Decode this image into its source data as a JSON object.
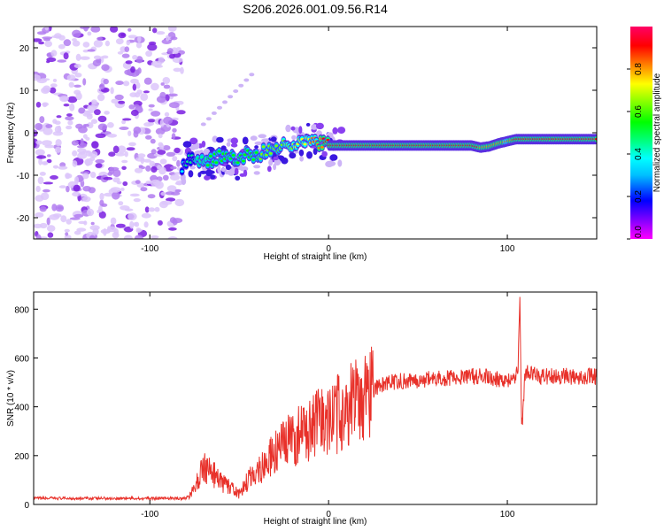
{
  "chart_data": [
    {
      "type": "heatmap",
      "title": "S206.2026.001.09.56.R14",
      "xlabel": "Height of straight line (km)",
      "ylabel": "Frequency (Hz)",
      "xlim": [
        -165,
        150
      ],
      "ylim": [
        -25,
        25
      ],
      "xticks": [
        -100,
        0,
        100
      ],
      "xtick_labels": [
        "-100",
        "0",
        "100"
      ],
      "yticks": [
        -20,
        -10,
        0,
        10,
        20
      ],
      "ytick_labels": [
        "-20",
        "-10",
        "0",
        "10",
        "20"
      ],
      "noise_region_x": [
        -165,
        -82
      ],
      "trace": {
        "x": [
          -82,
          -75,
          -68,
          -60,
          -52,
          -45,
          -38,
          -30,
          -24,
          -18,
          -12,
          -8,
          -4,
          0,
          10,
          20,
          30,
          40,
          50,
          60,
          70,
          80,
          85,
          90,
          95,
          100,
          105,
          110,
          120,
          130,
          140,
          150
        ],
        "y": [
          -8,
          -6,
          -6.5,
          -5.5,
          -6.5,
          -5,
          -5,
          -3.5,
          -3,
          -2,
          -2.5,
          -2,
          -2.5,
          -3,
          -3,
          -3,
          -3,
          -3,
          -3,
          -3,
          -3,
          -3,
          -3.5,
          -3.2,
          -2.5,
          -2,
          -1.5,
          -1.5,
          -1.5,
          -1.5,
          -1.5,
          -1.5
        ],
        "amplitude": [
          0.4,
          0.45,
          0.5,
          0.5,
          0.55,
          0.55,
          0.6,
          0.6,
          0.65,
          0.7,
          0.75,
          0.8,
          0.85,
          0.9,
          0.9,
          0.9,
          0.92,
          0.9,
          0.9,
          0.9,
          0.9,
          0.9,
          0.85,
          0.85,
          0.85,
          0.8,
          0.9,
          0.92,
          0.92,
          0.92,
          0.92,
          0.92
        ]
      },
      "colorbar": {
        "label": "Normalized spectral amplitude",
        "ticks": [
          0.0,
          0.2,
          0.4,
          0.6,
          0.8
        ],
        "tick_labels": [
          "0.0",
          "0.2",
          "0.4",
          "0.6",
          "0.8"
        ],
        "colormap": [
          "#ff00ff",
          "#8000ff",
          "#0000ff",
          "#00bfff",
          "#00ffff",
          "#00ff80",
          "#00ff00",
          "#80ff00",
          "#ffff00",
          "#ff8000",
          "#ff0000",
          "#ff0066"
        ]
      }
    },
    {
      "type": "line",
      "title": "",
      "xlabel": "Height of straight line (km)",
      "ylabel": "SNR (10 * v/v)",
      "xlim": [
        -165,
        150
      ],
      "ylim": [
        0,
        870
      ],
      "xticks": [
        -100,
        0,
        100
      ],
      "xtick_labels": [
        "-100",
        "0",
        "100"
      ],
      "yticks": [
        0,
        200,
        400,
        600,
        800
      ],
      "ytick_labels": [
        "0",
        "200",
        "400",
        "600",
        "800"
      ],
      "color": "#e8312a",
      "series": [
        {
          "name": "SNR",
          "x": [
            -165,
            -150,
            -130,
            -110,
            -90,
            -80,
            -75,
            -70,
            -65,
            -60,
            -55,
            -50,
            -45,
            -40,
            -35,
            -30,
            -25,
            -20,
            -15,
            -10,
            -5,
            0,
            5,
            10,
            15,
            20,
            25,
            30,
            40,
            50,
            60,
            70,
            80,
            90,
            100,
            104,
            106,
            107,
            108,
            110,
            115,
            120,
            130,
            140,
            150
          ],
          "y": [
            25,
            25,
            25,
            25,
            25,
            25,
            60,
            160,
            130,
            90,
            70,
            40,
            100,
            140,
            170,
            210,
            240,
            270,
            290,
            310,
            330,
            350,
            370,
            400,
            420,
            450,
            470,
            490,
            505,
            510,
            515,
            520,
            525,
            520,
            510,
            515,
            560,
            850,
            300,
            540,
            530,
            525,
            525,
            525,
            525
          ]
        }
      ]
    }
  ]
}
